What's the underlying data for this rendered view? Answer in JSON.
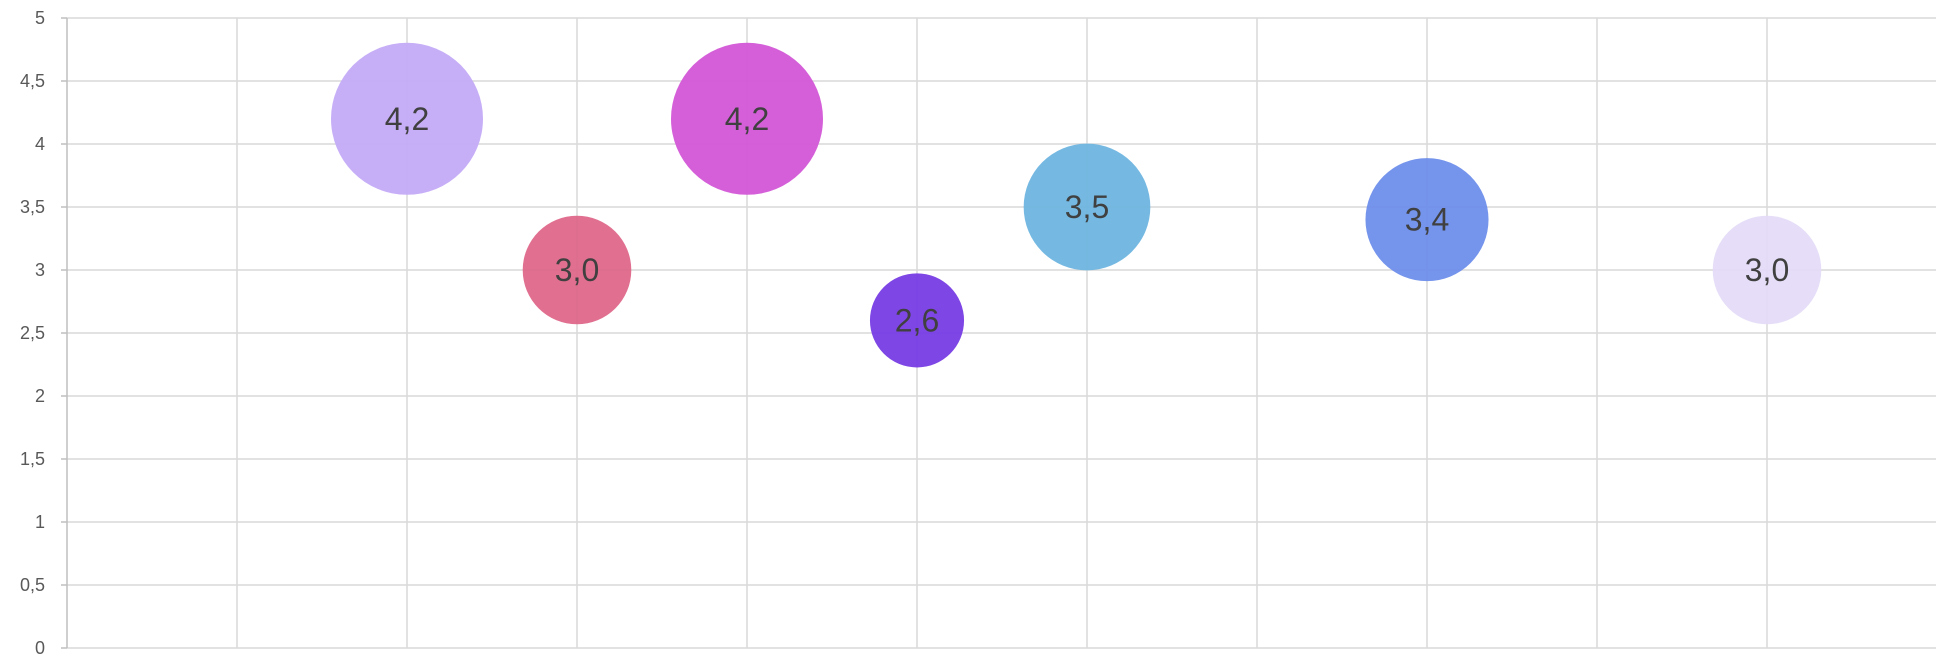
{
  "chart_data": {
    "type": "scatter",
    "subtype": "bubble",
    "title": "",
    "xlabel": "",
    "ylabel": "",
    "ylim": [
      0,
      5
    ],
    "xlim": [
      0,
      11.4
    ],
    "y_ticks": [
      "0",
      "0,5",
      "1",
      "1,5",
      "2",
      "2,5",
      "3",
      "3,5",
      "4",
      "4,5",
      "5"
    ],
    "x_ticks_shown": false,
    "grid": true,
    "legend": "none",
    "series": [
      {
        "points": [
          {
            "x": 2,
            "y": 4.2,
            "size": 4.2,
            "label": "4,2",
            "color": "#C3A9F7"
          },
          {
            "x": 3,
            "y": 3.0,
            "size": 3.0,
            "label": "3,0",
            "color": "#DE6488"
          },
          {
            "x": 4,
            "y": 4.2,
            "size": 4.2,
            "label": "4,2",
            "color": "#D253D6"
          },
          {
            "x": 5,
            "y": 2.6,
            "size": 2.6,
            "label": "2,6",
            "color": "#7438E3"
          },
          {
            "x": 6,
            "y": 3.5,
            "size": 3.5,
            "label": "3,5",
            "color": "#6BB4E0"
          },
          {
            "x": 8,
            "y": 3.4,
            "size": 3.4,
            "label": "3,4",
            "color": "#6A8CEB"
          },
          {
            "x": 10,
            "y": 3.0,
            "size": 3.0,
            "label": "3,0",
            "color": "#E4DCF8"
          }
        ]
      }
    ]
  }
}
